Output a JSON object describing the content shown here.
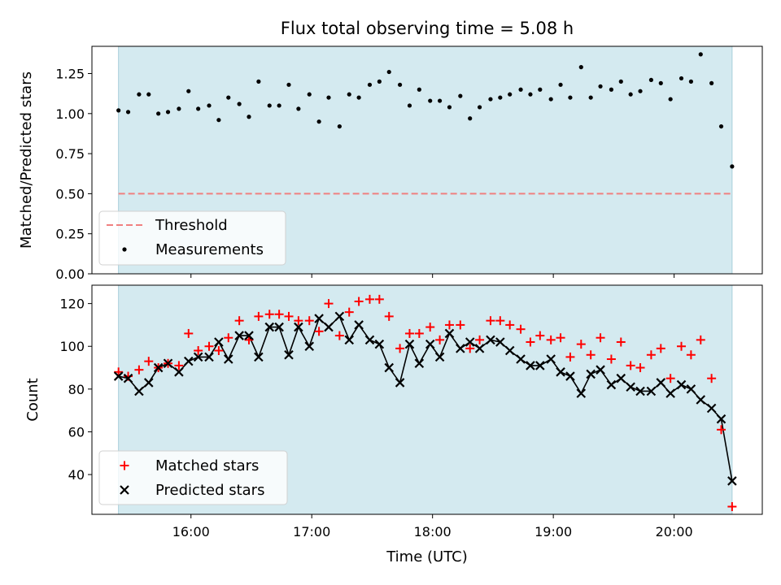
{
  "chart_data": [
    {
      "type": "scatter",
      "title": "Flux total observing time = 5.08 h",
      "xlabel": "",
      "ylabel": "Matched/Predicted stars",
      "xlim": [
        15.18,
        20.73
      ],
      "ylim": [
        0.0,
        1.42
      ],
      "yticks": [
        0.0,
        0.25,
        0.5,
        0.75,
        1.0,
        1.25
      ],
      "ytick_labels": [
        "0.00",
        "0.25",
        "0.50",
        "0.75",
        "1.00",
        "1.25"
      ],
      "grid": false,
      "observing_window": [
        15.4,
        20.48
      ],
      "threshold": 0.5,
      "legend_position": "lower-left",
      "legend": [
        "Threshold",
        "Measurements"
      ],
      "series": [
        {
          "name": "Measurements",
          "x": [
            15.4,
            15.48,
            15.57,
            15.65,
            15.73,
            15.81,
            15.9,
            15.98,
            16.06,
            16.15,
            16.23,
            16.31,
            16.4,
            16.48,
            16.56,
            16.65,
            16.73,
            16.81,
            16.89,
            16.98,
            17.06,
            17.14,
            17.23,
            17.31,
            17.39,
            17.48,
            17.56,
            17.64,
            17.73,
            17.81,
            17.89,
            17.98,
            18.06,
            18.14,
            18.23,
            18.31,
            18.39,
            18.48,
            18.56,
            18.64,
            18.73,
            18.81,
            18.89,
            18.98,
            19.06,
            19.14,
            19.23,
            19.31,
            19.39,
            19.48,
            19.56,
            19.64,
            19.72,
            19.81,
            19.89,
            19.97,
            20.06,
            20.14,
            20.22,
            20.31,
            20.39,
            20.48
          ],
          "y": [
            1.02,
            1.01,
            1.12,
            1.12,
            1.0,
            1.01,
            1.03,
            1.14,
            1.03,
            1.05,
            0.96,
            1.1,
            1.06,
            0.98,
            1.2,
            1.05,
            1.05,
            1.18,
            1.03,
            1.12,
            0.95,
            1.1,
            0.92,
            1.12,
            1.1,
            1.18,
            1.2,
            1.26,
            1.18,
            1.05,
            1.15,
            1.08,
            1.08,
            1.04,
            1.11,
            0.97,
            1.04,
            1.09,
            1.1,
            1.12,
            1.15,
            1.12,
            1.15,
            1.09,
            1.18,
            1.1,
            1.29,
            1.1,
            1.17,
            1.15,
            1.2,
            1.12,
            1.14,
            1.21,
            1.19,
            1.09,
            1.22,
            1.2,
            1.37,
            1.19,
            0.92,
            0.67
          ]
        }
      ]
    },
    {
      "type": "scatter",
      "title": "",
      "xlabel": "Time (UTC)",
      "ylabel": "Count",
      "xlim": [
        15.18,
        20.73
      ],
      "ylim": [
        21.4,
        128.6
      ],
      "xticks": [
        16,
        17,
        18,
        19,
        20
      ],
      "xtick_labels": [
        "16:00",
        "17:00",
        "18:00",
        "19:00",
        "20:00"
      ],
      "yticks": [
        40,
        60,
        80,
        100,
        120
      ],
      "ytick_labels": [
        "40",
        "60",
        "80",
        "100",
        "120"
      ],
      "grid": false,
      "observing_window": [
        15.4,
        20.48
      ],
      "legend_position": "lower-left",
      "legend": [
        "Matched stars",
        "Predicted stars"
      ],
      "x": [
        15.4,
        15.48,
        15.57,
        15.65,
        15.73,
        15.81,
        15.9,
        15.98,
        16.06,
        16.15,
        16.23,
        16.31,
        16.4,
        16.48,
        16.56,
        16.65,
        16.73,
        16.81,
        16.89,
        16.98,
        17.06,
        17.14,
        17.23,
        17.31,
        17.39,
        17.48,
        17.56,
        17.64,
        17.73,
        17.81,
        17.89,
        17.98,
        18.06,
        18.14,
        18.23,
        18.31,
        18.39,
        18.48,
        18.56,
        18.64,
        18.73,
        18.81,
        18.89,
        18.98,
        19.06,
        19.14,
        19.23,
        19.31,
        19.39,
        19.48,
        19.56,
        19.64,
        19.72,
        19.81,
        19.89,
        19.97,
        20.06,
        20.14,
        20.22,
        20.31,
        20.39,
        20.48
      ],
      "series": [
        {
          "name": "Matched stars",
          "color": "#ff0000",
          "marker": "plus",
          "values": [
            88,
            86,
            89,
            93,
            90,
            92,
            91,
            106,
            98,
            100,
            98,
            104,
            112,
            103,
            114,
            115,
            115,
            114,
            112,
            112,
            107,
            120,
            105,
            116,
            121,
            122,
            122,
            114,
            99,
            106,
            106,
            109,
            103,
            110,
            110,
            99,
            103,
            112,
            112,
            110,
            108,
            102,
            105,
            103,
            104,
            95,
            101,
            96,
            104,
            94,
            102,
            91,
            90,
            96,
            99,
            85,
            100,
            96,
            103,
            85,
            61,
            25
          ]
        },
        {
          "name": "Predicted stars",
          "color": "#000000",
          "marker": "x",
          "values": [
            86,
            85,
            79,
            83,
            90,
            92,
            88,
            93,
            95,
            95,
            102,
            94,
            105,
            105,
            95,
            109,
            109,
            96,
            109,
            100,
            113,
            109,
            114,
            103,
            110,
            103,
            101,
            90,
            83,
            101,
            92,
            101,
            95,
            106,
            99,
            102,
            99,
            103,
            102,
            98,
            94,
            91,
            91,
            94,
            88,
            86,
            78,
            87,
            89,
            82,
            85,
            81,
            79,
            79,
            83,
            78,
            82,
            80,
            75,
            71,
            66,
            37
          ]
        }
      ]
    }
  ],
  "colors": {
    "window_fill": "#d4eaf0",
    "window_edge": "#a8cfdb",
    "threshold": "#f08080",
    "measurements": "#000000",
    "matched": "#ff0000",
    "predicted": "#000000"
  }
}
